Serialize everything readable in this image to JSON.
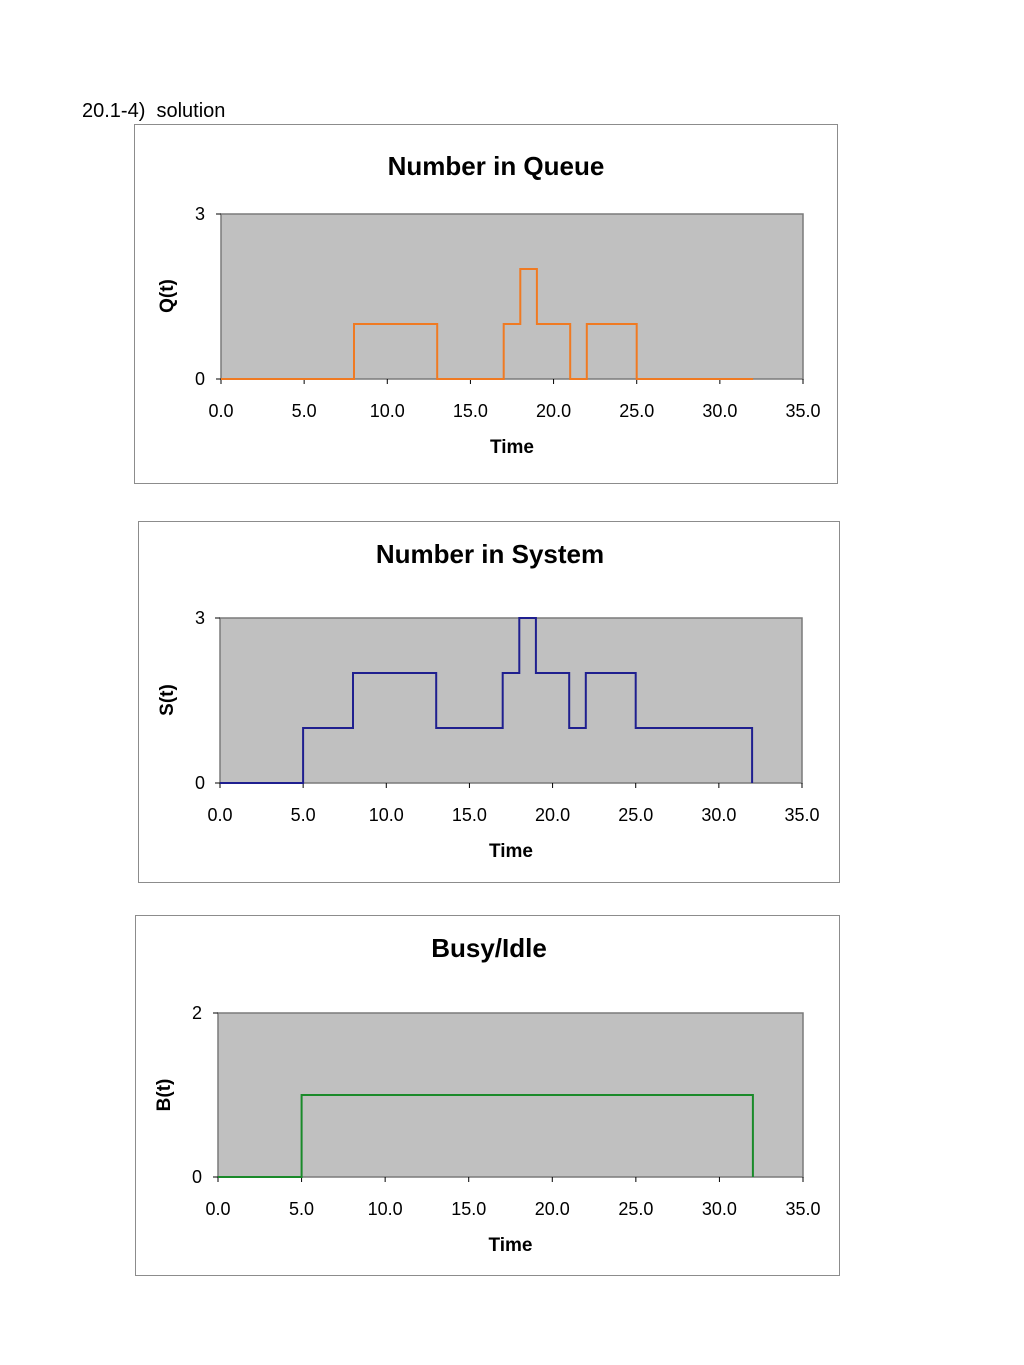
{
  "page": {
    "heading": "20.1-4)  solution"
  },
  "chart_data": [
    {
      "type": "line",
      "step": true,
      "title": "Number in Queue",
      "xlabel": "Time",
      "ylabel": "Q(t)",
      "xlim": [
        0,
        35
      ],
      "ylim": [
        0,
        3
      ],
      "x_ticks": [
        "0.0",
        "5.0",
        "10.0",
        "15.0",
        "20.0",
        "25.0",
        "30.0",
        "35.0"
      ],
      "y_ticks": [
        "0",
        "3"
      ],
      "grid": false,
      "plot_background": "#c0c0c0",
      "series": [
        {
          "color": "#f07a22",
          "points": [
            [
              0,
              0
            ],
            [
              8,
              0
            ],
            [
              8,
              1
            ],
            [
              13,
              1
            ],
            [
              13,
              0
            ],
            [
              17,
              0
            ],
            [
              17,
              1
            ],
            [
              18,
              1
            ],
            [
              18,
              2
            ],
            [
              19,
              2
            ],
            [
              19,
              1
            ],
            [
              21,
              1
            ],
            [
              21,
              0
            ],
            [
              22,
              0
            ],
            [
              22,
              1
            ],
            [
              25,
              1
            ],
            [
              25,
              0
            ],
            [
              32,
              0
            ]
          ]
        }
      ]
    },
    {
      "type": "line",
      "step": true,
      "title": "Number in System",
      "xlabel": "Time",
      "ylabel": "S(t)",
      "xlim": [
        0,
        35
      ],
      "ylim": [
        0,
        3
      ],
      "x_ticks": [
        "0.0",
        "5.0",
        "10.0",
        "15.0",
        "20.0",
        "25.0",
        "30.0",
        "35.0"
      ],
      "y_ticks": [
        "0",
        "3"
      ],
      "grid": false,
      "plot_background": "#c0c0c0",
      "series": [
        {
          "color": "#1f1f8f",
          "points": [
            [
              0,
              0
            ],
            [
              5,
              0
            ],
            [
              5,
              1
            ],
            [
              8,
              1
            ],
            [
              8,
              2
            ],
            [
              13,
              2
            ],
            [
              13,
              1
            ],
            [
              17,
              1
            ],
            [
              17,
              2
            ],
            [
              18,
              2
            ],
            [
              18,
              3
            ],
            [
              19,
              3
            ],
            [
              19,
              2
            ],
            [
              21,
              2
            ],
            [
              21,
              1
            ],
            [
              22,
              1
            ],
            [
              22,
              2
            ],
            [
              25,
              2
            ],
            [
              25,
              1
            ],
            [
              32,
              1
            ],
            [
              32,
              0
            ]
          ]
        }
      ]
    },
    {
      "type": "line",
      "step": true,
      "title": "Busy/Idle",
      "xlabel": "Time",
      "ylabel": "B(t)",
      "xlim": [
        0,
        35
      ],
      "ylim": [
        0,
        2
      ],
      "x_ticks": [
        "0.0",
        "5.0",
        "10.0",
        "15.0",
        "20.0",
        "25.0",
        "30.0",
        "35.0"
      ],
      "y_ticks": [
        "0",
        "2"
      ],
      "grid": false,
      "plot_background": "#c0c0c0",
      "series": [
        {
          "color": "#1a8a2a",
          "points": [
            [
              0,
              0
            ],
            [
              5,
              0
            ],
            [
              5,
              1
            ],
            [
              32,
              1
            ],
            [
              32,
              0
            ]
          ]
        }
      ]
    }
  ]
}
